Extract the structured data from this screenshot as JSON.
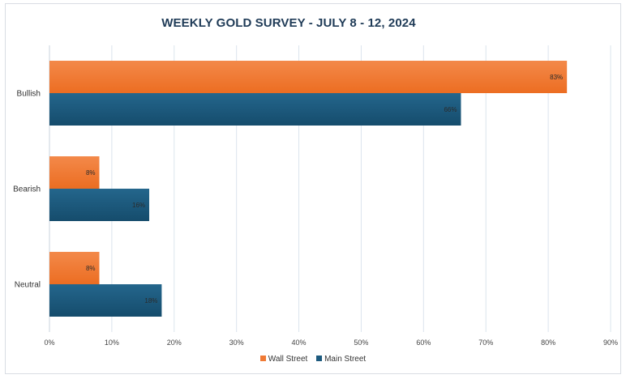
{
  "chart_data": {
    "type": "bar",
    "orientation": "horizontal",
    "title": "WEEKLY GOLD SURVEY - JULY 8 - 12, 2024",
    "categories": [
      "Bullish",
      "Bearish",
      "Neutral"
    ],
    "series": [
      {
        "name": "Wall Street",
        "values": [
          83,
          8,
          8
        ],
        "labels": [
          "83%",
          "8%",
          "8%"
        ],
        "color": "#f07a35"
      },
      {
        "name": "Main Street",
        "values": [
          66,
          16,
          18
        ],
        "labels": [
          "66%",
          "16%",
          "18%"
        ],
        "color": "#1d5a7e"
      }
    ],
    "xlim": [
      0,
      90
    ],
    "xticks": [
      "0%",
      "10%",
      "20%",
      "30%",
      "40%",
      "50%",
      "60%",
      "70%",
      "80%",
      "90%"
    ],
    "grid": "vertical",
    "legend_position": "bottom"
  }
}
